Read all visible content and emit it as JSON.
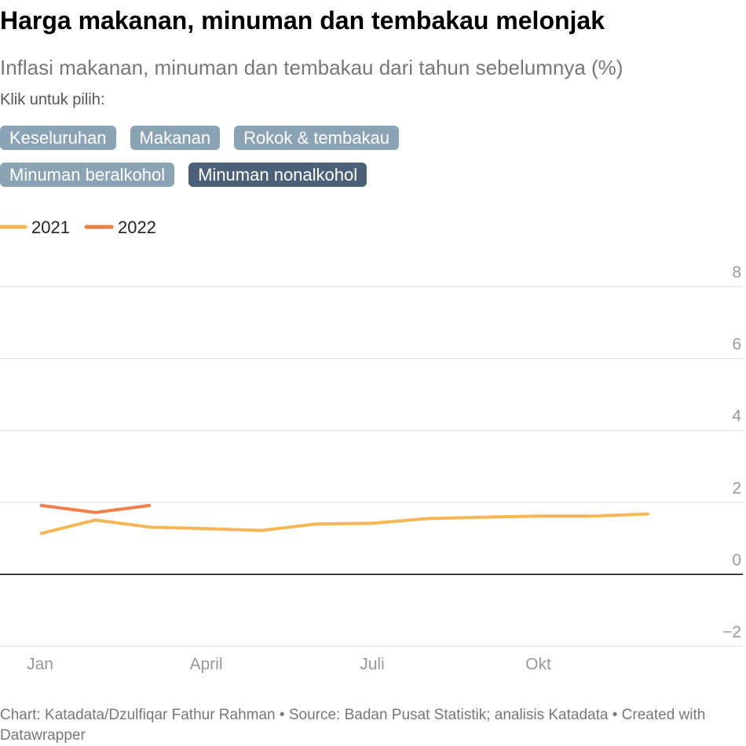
{
  "chart_data": {
    "type": "line",
    "title": "Harga makanan, minuman dan tembakau melonjak",
    "subtitle": "Inflasi makanan, minuman dan tembakau dari tahun sebelumnya (%)",
    "prompt": "Klik untuk pilih:",
    "buttons": [
      "Keseluruhan",
      "Makanan",
      "Rokok & tembakau",
      "Minuman beralkohol",
      "Minuman nonalkohol"
    ],
    "selected_button": 4,
    "categories": [
      "Jan",
      null,
      null,
      "April",
      null,
      null,
      "Juli",
      null,
      null,
      "Okt",
      null,
      null
    ],
    "series": [
      {
        "name": "2021",
        "color": "#f6b655",
        "values": [
          1.13,
          1.51,
          1.31,
          1.27,
          1.22,
          1.4,
          1.42,
          1.55,
          1.59,
          1.62,
          1.62,
          1.68
        ]
      },
      {
        "name": "2022",
        "color": "#f07f4a",
        "values": [
          1.92,
          1.72,
          1.92,
          null,
          null,
          null,
          null,
          null,
          null,
          null,
          null,
          null
        ]
      }
    ],
    "ylim": [
      -2,
      8
    ],
    "yticks": [
      {
        "value": -2,
        "label": "−2"
      },
      0,
      2,
      4,
      6,
      8
    ],
    "grid": true,
    "footer": "Chart: Katadata/Dzulfiqar Fathur Rahman • Source: Badan Pusat Statistik; analisis Katadata • Created with Datawrapper"
  }
}
